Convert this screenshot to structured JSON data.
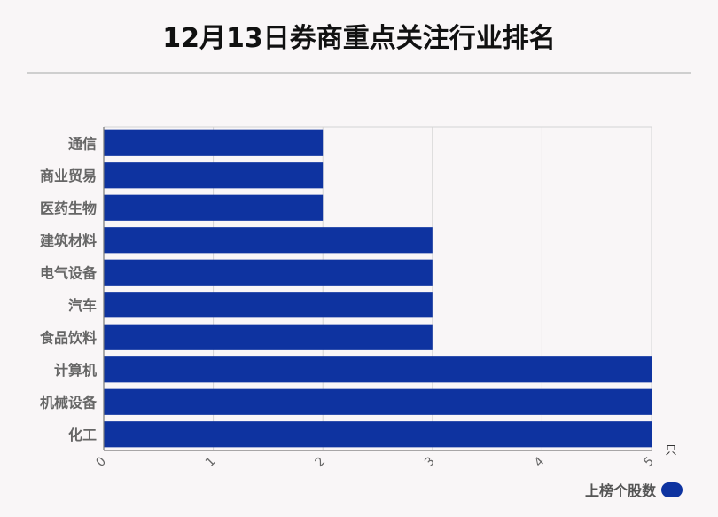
{
  "title": "12月13日券商重点关注行业排名",
  "colors": {
    "bar": "#0e33a0",
    "grid": "#d4d4d4",
    "axis": "#777777",
    "label": "#666666",
    "background": "#f9f6f7"
  },
  "chart_data": {
    "type": "bar",
    "orientation": "horizontal",
    "title": "12月13日券商重点关注行业排名",
    "categories": [
      "通信",
      "商业贸易",
      "医药生物",
      "建筑材料",
      "电气设备",
      "汽车",
      "食品饮料",
      "计算机",
      "机械设备",
      "化工"
    ],
    "series": [
      {
        "name": "上榜个股数",
        "values": [
          2,
          2,
          2,
          3,
          3,
          3,
          3,
          5,
          5,
          5
        ]
      }
    ],
    "xlim": [
      0,
      5
    ],
    "xticks": [
      "0",
      "1",
      "2",
      "3",
      "4",
      "5"
    ],
    "xunit": "只",
    "grid": true,
    "legend_position": "bottom-right"
  }
}
